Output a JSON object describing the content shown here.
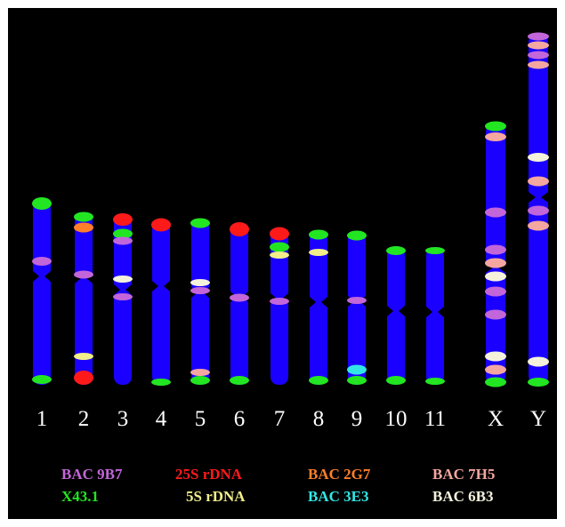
{
  "figure": {
    "chromosome_color": "#1a00ff",
    "background": "#000000",
    "chromosomes": [
      {
        "label": "1",
        "signals": [
          "X43.1",
          "BAC 9B7",
          "X43.1"
        ]
      },
      {
        "label": "2",
        "signals": [
          "X43.1",
          "BAC 2G7",
          "BAC 9B7",
          "5S rDNA",
          "25S rDNA"
        ]
      },
      {
        "label": "3",
        "signals": [
          "25S rDNA",
          "X43.1",
          "BAC 9B7",
          "BAC 6B3",
          "BAC 9B7"
        ]
      },
      {
        "label": "4",
        "signals": [
          "25S rDNA",
          "X43.1"
        ]
      },
      {
        "label": "5",
        "signals": [
          "X43.1",
          "BAC 6B3",
          "BAC 9B7",
          "BAC 7H5",
          "X43.1"
        ]
      },
      {
        "label": "6",
        "signals": [
          "25S rDNA",
          "BAC 9B7",
          "X43.1"
        ]
      },
      {
        "label": "7",
        "signals": [
          "25S rDNA",
          "X43.1",
          "5S rDNA",
          "BAC 9B7"
        ]
      },
      {
        "label": "8",
        "signals": [
          "X43.1",
          "5S rDNA",
          "X43.1"
        ]
      },
      {
        "label": "9",
        "signals": [
          "X43.1",
          "BAC 9B7",
          "BAC 3E3",
          "X43.1"
        ]
      },
      {
        "label": "10",
        "signals": [
          "X43.1",
          "X43.1"
        ]
      },
      {
        "label": "11",
        "signals": [
          "X43.1",
          "X43.1"
        ]
      },
      {
        "label": "X",
        "signals": [
          "X43.1",
          "BAC 7H5",
          "BAC 9B7",
          "BAC 9B7",
          "BAC 7H5",
          "BAC 6B3",
          "BAC 9B7",
          "BAC 9B7",
          "BAC 6B3",
          "BAC 7H5",
          "X43.1"
        ]
      },
      {
        "label": "Y",
        "signals": [
          "BAC 9B7",
          "BAC 7H5",
          "BAC 9B7",
          "BAC 7H5",
          "BAC 6B3",
          "BAC 7H5",
          "BAC 9B7",
          "BAC 7H5",
          "BAC 6B3",
          "X43.1"
        ]
      }
    ]
  },
  "legend": [
    {
      "text": "BAC 9B7",
      "color": "#c266d9"
    },
    {
      "text": "25S rDNA",
      "color": "#ff1a1a"
    },
    {
      "text": "BAC 2G7",
      "color": "#ff7f2a"
    },
    {
      "text": "BAC 7H5",
      "color": "#f4a6a0"
    },
    {
      "text": "X43.1",
      "color": "#22e622"
    },
    {
      "text": "5S rDNA",
      "color": "#f2ee8a"
    },
    {
      "text": "BAC 3E3",
      "color": "#33e6e6"
    },
    {
      "text": "BAC 6B3",
      "color": "#f5f2dc"
    }
  ]
}
